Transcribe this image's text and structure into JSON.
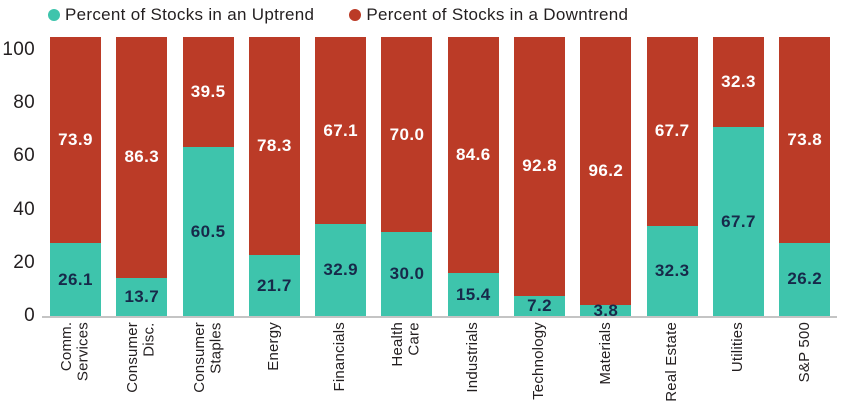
{
  "legend": {
    "uptrend_label": "Percent of Stocks in an Uptrend",
    "downtrend_label": "Percent of Stocks in a Downtrend"
  },
  "colors": {
    "uptrend": "#3EC4AC",
    "downtrend": "#BB3B27",
    "uptrend_label_text": "#17294A",
    "downtrend_label_text": "#FFFFFF",
    "axis_text": "#231F20",
    "axis_line": "#C4C4C4"
  },
  "chart_data": {
    "type": "bar",
    "stacked": true,
    "title": "",
    "xlabel": "",
    "ylabel": "",
    "ylim": [
      0,
      100
    ],
    "yticks": [
      0,
      20,
      40,
      60,
      80,
      100
    ],
    "grid": false,
    "legend_position": "top-left",
    "value_labels": "inside segments, one decimal",
    "categories": [
      "Comm.\nServices",
      "Consumer\nDisc.",
      "Consumer\nStaples",
      "Energy",
      "Financials",
      "Health\nCare",
      "Industrials",
      "Technology",
      "Materials",
      "Real Estate",
      "Utilities",
      "S&P 500"
    ],
    "series": [
      {
        "name": "Percent of Stocks in an Uptrend",
        "color": "#3EC4AC",
        "values": [
          26.1,
          13.7,
          60.5,
          21.7,
          32.9,
          30.0,
          15.4,
          7.2,
          3.8,
          32.3,
          67.7,
          26.2
        ]
      },
      {
        "name": "Percent of Stocks in a Downtrend",
        "color": "#BB3B27",
        "values": [
          73.9,
          86.3,
          39.5,
          78.3,
          67.1,
          70.0,
          84.6,
          92.8,
          96.2,
          67.7,
          32.3,
          73.8
        ]
      }
    ]
  }
}
